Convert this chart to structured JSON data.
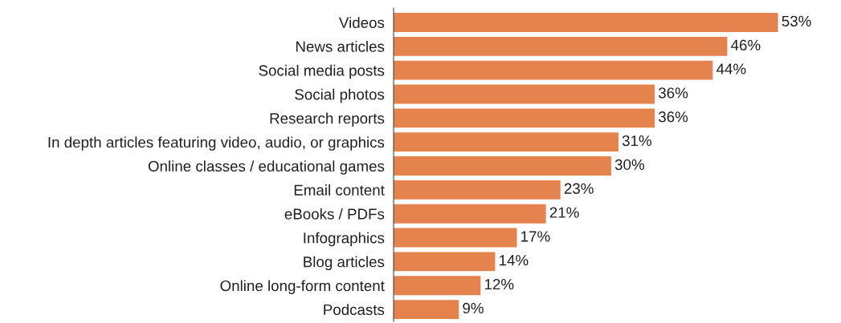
{
  "chart_data": {
    "type": "bar",
    "orientation": "horizontal",
    "categories": [
      "Videos",
      "News articles",
      "Social media posts",
      "Social photos",
      "Research reports",
      "In depth articles featuring video, audio, or graphics",
      "Online classes / educational games",
      "Email content",
      "eBooks / PDFs",
      "Infographics",
      "Blog articles",
      "Online long-form content",
      "Podcasts"
    ],
    "values": [
      53,
      46,
      44,
      36,
      36,
      31,
      30,
      23,
      21,
      17,
      14,
      12,
      9
    ],
    "value_labels": [
      "53%",
      "46%",
      "44%",
      "36%",
      "36%",
      "31%",
      "30%",
      "23%",
      "21%",
      "17%",
      "14%",
      "12%",
      "9%"
    ],
    "color": "#e5834f",
    "grid": false,
    "legend": false
  }
}
